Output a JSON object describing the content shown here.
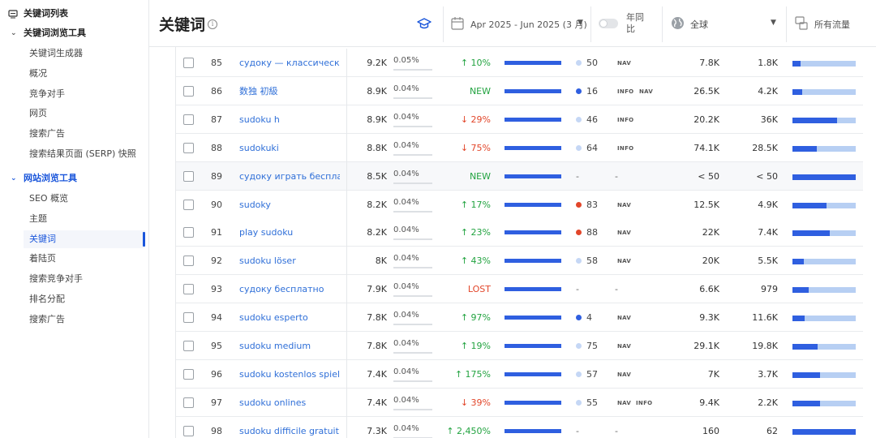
{
  "sidebar": {
    "top": "关键词列表",
    "section1": "关键词浏览工具",
    "section1_items": [
      "关键词生成器",
      "概况",
      "竞争对手",
      "网页",
      "搜索广告",
      "搜索结果页面 (SERP) 快照"
    ],
    "section2": "网站浏览工具",
    "section2_items": [
      "SEO 概览",
      "主题",
      "关键词",
      "着陆页",
      "搜索竞争对手",
      "排名分配",
      "搜索广告"
    ],
    "active_item": "关键词"
  },
  "header": {
    "title": "关键词",
    "date_range": "Apr 2025 - Jun 2025 (3 月)",
    "yoy_label": "年同比",
    "region": "全球",
    "traffic_type": "所有流量"
  },
  "colors": {
    "accent": "#1a56db",
    "link": "#2f6fd8",
    "up": "#22a340",
    "down": "#e2462a",
    "bar": "#2f5fe0",
    "bar_light": "#b7cff3"
  },
  "rows": [
    {
      "rank": "85",
      "keyword": "судоку — классическое спорт",
      "volume": "9.2K",
      "kd": "0.05%",
      "change": "↑ 10%",
      "change_type": "up",
      "dot": "light",
      "position": "50",
      "badges": [
        "NAV"
      ],
      "visits": "7.8K",
      "traffic": "1.8K",
      "share": 0.13
    },
    {
      "rank": "86",
      "keyword": "数独 初級",
      "volume": "8.9K",
      "kd": "0.04%",
      "change": "NEW",
      "change_type": "new",
      "dot": "blue",
      "position": "16",
      "badges": [
        "INFO",
        "NAV"
      ],
      "visits": "26.5K",
      "traffic": "4.2K",
      "share": 0.16
    },
    {
      "rank": "87",
      "keyword": "sudoku h",
      "volume": "8.9K",
      "kd": "0.04%",
      "change": "↓ 29%",
      "change_type": "down",
      "dot": "light",
      "position": "46",
      "badges": [
        "INFO"
      ],
      "visits": "20.2K",
      "traffic": "36K",
      "share": 0.7
    },
    {
      "rank": "88",
      "keyword": "sudokuki",
      "volume": "8.8K",
      "kd": "0.04%",
      "change": "↓ 75%",
      "change_type": "down",
      "dot": "light",
      "position": "64",
      "badges": [
        "INFO"
      ],
      "visits": "74.1K",
      "traffic": "28.5K",
      "share": 0.38
    },
    {
      "rank": "89",
      "keyword": "судоку играть бесплатно",
      "volume": "8.5K",
      "kd": "0.04%",
      "change": "NEW",
      "change_type": "new",
      "dot": "",
      "position": "",
      "badges": [],
      "visits": "< 50",
      "traffic": "< 50",
      "share": 1.0,
      "highlight": true
    },
    {
      "rank": "90",
      "keyword": "sudoky",
      "volume": "8.2K",
      "kd": "0.04%",
      "change": "↑ 17%",
      "change_type": "up",
      "dot": "red",
      "position": "83",
      "badges": [
        "NAV"
      ],
      "visits": "12.5K",
      "traffic": "4.9K",
      "share": 0.54
    },
    {
      "rank": "91",
      "keyword": "play sudoku",
      "volume": "8.2K",
      "kd": "0.04%",
      "change": "↑ 23%",
      "change_type": "up",
      "dot": "red",
      "position": "88",
      "badges": [
        "NAV"
      ],
      "visits": "22K",
      "traffic": "7.4K",
      "share": 0.59
    },
    {
      "rank": "92",
      "keyword": "sudoku löser",
      "volume": "8K",
      "kd": "0.04%",
      "change": "↑ 43%",
      "change_type": "up",
      "dot": "light",
      "position": "58",
      "badges": [
        "NAV"
      ],
      "visits": "20K",
      "traffic": "5.5K",
      "share": 0.18
    },
    {
      "rank": "93",
      "keyword": "судоку бесплатно",
      "volume": "7.9K",
      "kd": "0.04%",
      "change": "LOST",
      "change_type": "lost",
      "dot": "",
      "position": "",
      "badges": [],
      "visits": "6.6K",
      "traffic": "979",
      "share": 0.25
    },
    {
      "rank": "94",
      "keyword": "sudoku esperto",
      "volume": "7.8K",
      "kd": "0.04%",
      "change": "↑ 97%",
      "change_type": "up",
      "dot": "blue",
      "position": "4",
      "badges": [
        "NAV"
      ],
      "visits": "9.3K",
      "traffic": "11.6K",
      "share": 0.19
    },
    {
      "rank": "95",
      "keyword": "sudoku medium",
      "volume": "7.8K",
      "kd": "0.04%",
      "change": "↑ 19%",
      "change_type": "up",
      "dot": "light",
      "position": "75",
      "badges": [
        "NAV"
      ],
      "visits": "29.1K",
      "traffic": "19.8K",
      "share": 0.4
    },
    {
      "rank": "96",
      "keyword": "sudoku kostenlos spielen",
      "volume": "7.4K",
      "kd": "0.04%",
      "change": "↑ 175%",
      "change_type": "up",
      "dot": "light",
      "position": "57",
      "badges": [
        "NAV"
      ],
      "visits": "7K",
      "traffic": "3.7K",
      "share": 0.44
    },
    {
      "rank": "97",
      "keyword": "sudoku onlines",
      "volume": "7.4K",
      "kd": "0.04%",
      "change": "↓ 39%",
      "change_type": "down",
      "dot": "light",
      "position": "55",
      "badges": [
        "NAV",
        "INFO"
      ],
      "visits": "9.4K",
      "traffic": "2.2K",
      "share": 0.44
    },
    {
      "rank": "98",
      "keyword": "sudoku difficile gratuit",
      "volume": "7.3K",
      "kd": "0.04%",
      "change": "↑ 2,450%",
      "change_type": "up",
      "dot": "",
      "position": "",
      "badges": [],
      "visits": "160",
      "traffic": "62",
      "share": 1.0
    }
  ]
}
